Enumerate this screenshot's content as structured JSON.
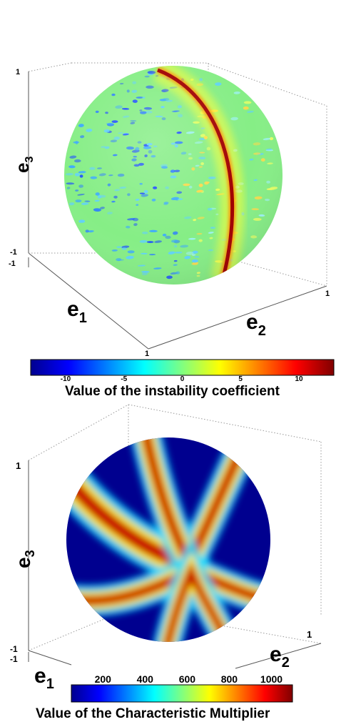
{
  "chart_data": [
    {
      "type": "heatmap",
      "title": "",
      "xlabel": "e",
      "xlabel_subscript": "1",
      "ylabel": "e",
      "ylabel_subscript": "2",
      "zlabel": "e",
      "zlabel_subscript": "3",
      "axis_ticks": {
        "e1": [
          "-1",
          "1"
        ],
        "e2": [
          "1"
        ],
        "e3": [
          "-1",
          "1"
        ]
      },
      "axis_range": {
        "e1": [
          -1,
          1
        ],
        "e2": [
          -1,
          1
        ],
        "e3": [
          -1,
          1
        ]
      },
      "grid": false,
      "colorbar": {
        "label": "Value of the instability coefficient",
        "min": -13,
        "max": 13,
        "ticks": [
          "-10",
          "-5",
          "0",
          "5",
          "10"
        ],
        "tick_values": [
          -10,
          -5,
          0,
          5,
          10
        ],
        "placement": "bottom"
      },
      "colormap": "jet",
      "surface": "unit sphere",
      "background_value": 0,
      "features": [
        {
          "kind": "great-circle band",
          "value": 13
        }
      ]
    },
    {
      "type": "heatmap",
      "title": "",
      "xlabel": "e",
      "xlabel_subscript": "1",
      "ylabel": "e",
      "ylabel_subscript": "2",
      "zlabel": "e",
      "zlabel_subscript": "3",
      "axis_ticks": {
        "e1": [
          "-1"
        ],
        "e2": [
          "1"
        ],
        "e3": [
          "-1",
          "1"
        ]
      },
      "axis_range": {
        "e1": [
          -1,
          1
        ],
        "e2": [
          -1,
          1
        ],
        "e3": [
          -1,
          1
        ]
      },
      "grid": false,
      "colorbar": {
        "label": "Value of the Characteristic Multiplier",
        "min": 50,
        "max": 1100,
        "ticks": [
          "200",
          "400",
          "600",
          "800",
          "1000"
        ],
        "tick_values": [
          200,
          400,
          600,
          800,
          1000
        ],
        "placement": "bottom"
      },
      "colormap": "jet",
      "surface": "unit sphere",
      "background_value": 50,
      "features": [
        {
          "kind": "hyperbolic band",
          "value": 1100
        }
      ]
    }
  ]
}
